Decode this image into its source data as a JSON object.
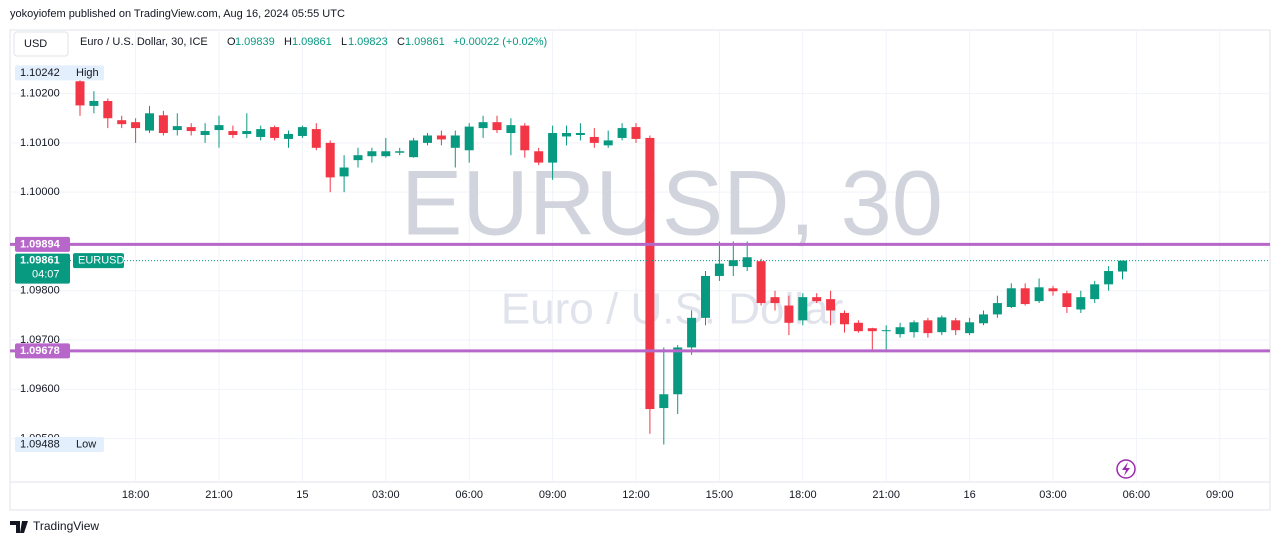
{
  "header": {
    "published": "yokoyiofem published on TradingView.com, Aug 16, 2024 05:55 UTC",
    "currency": "USD",
    "symbol": "Euro / U.S. Dollar, 30, ICE",
    "open_label": "O",
    "open": 1.09839,
    "high_label": "H",
    "high": 1.09861,
    "low_label": "L",
    "low": 1.09823,
    "close_label": "C",
    "close": 1.09861,
    "change": "+0.00022 (+0.02%)"
  },
  "chart_data": {
    "type": "candlestick",
    "watermark": "EURUSD, 30",
    "watermark_sub": "Euro / U.S. Dollar",
    "categories": [
      null,
      null,
      null,
      null,
      "18:00",
      null,
      null,
      null,
      null,
      null,
      "21:00",
      null,
      null,
      null,
      null,
      null,
      "15",
      null,
      null,
      null,
      null,
      null,
      "03:00",
      null,
      null,
      null,
      null,
      null,
      "06:00",
      null,
      null,
      null,
      null,
      null,
      "09:00",
      null,
      null,
      null,
      null,
      null,
      "12:00",
      null,
      null,
      null,
      null,
      null,
      "15:00",
      null,
      null,
      null,
      null,
      null,
      "18:00",
      null,
      null,
      null,
      null,
      null,
      "21:00",
      null,
      null,
      null,
      null,
      null,
      "16",
      null,
      null,
      null,
      null,
      null,
      "03:00",
      null,
      null,
      null,
      null,
      null,
      "06:00",
      null,
      null,
      null,
      null,
      null,
      "09:00",
      null,
      null,
      null
    ],
    "series": [
      {
        "name": "EURUSD",
        "up_color": "#089981",
        "down_color": "#f23645",
        "open": [
          1.10225,
          1.10175,
          1.10185,
          1.10146,
          1.10142,
          1.10125,
          1.10156,
          1.10126,
          1.10132,
          1.10116,
          1.10126,
          1.10124,
          1.10118,
          1.10112,
          1.10132,
          1.10108,
          1.10114,
          1.10128,
          1.101,
          1.10032,
          1.10065,
          1.10073,
          1.10073,
          1.1008,
          1.10071,
          1.101,
          1.10115,
          1.1009,
          1.10085,
          1.1013,
          1.10142,
          1.1012,
          1.10135,
          1.10083,
          1.1006,
          1.10113,
          1.10116,
          1.10112,
          1.10095,
          1.1011,
          1.10132,
          1.1011,
          1.09562,
          1.0959,
          1.09685,
          1.09745,
          1.0983,
          1.0985,
          1.09848,
          1.0986,
          1.09787,
          1.0977,
          1.0974,
          1.09787,
          1.09783,
          1.09755,
          1.09735,
          1.09724,
          1.09718,
          1.09712,
          1.09716,
          1.0974,
          1.09716,
          1.0974,
          1.09714,
          1.09734,
          1.09752,
          1.09767,
          1.09805,
          1.09779,
          1.09805,
          1.09795,
          1.09762,
          1.09783,
          1.09813,
          1.09839,
          null,
          null,
          null,
          null,
          null,
          null,
          null,
          null,
          null,
          null
        ],
        "high": [
          1.10242,
          1.10205,
          1.1019,
          1.10155,
          1.1015,
          1.10175,
          1.10165,
          1.1016,
          1.1014,
          1.1014,
          1.10155,
          1.10135,
          1.1016,
          1.10135,
          1.10135,
          1.10125,
          1.10135,
          1.1014,
          1.10105,
          1.10075,
          1.1009,
          1.1009,
          1.1011,
          1.1009,
          1.1011,
          1.1012,
          1.10125,
          1.10125,
          1.1014,
          1.10155,
          1.10155,
          1.1015,
          1.1014,
          1.1009,
          1.10135,
          1.10135,
          1.1014,
          1.1013,
          1.10125,
          1.1014,
          1.1014,
          1.10115,
          1.09685,
          1.0969,
          1.0976,
          1.0984,
          1.099,
          1.099,
          1.099,
          1.09865,
          1.098,
          1.0979,
          1.09795,
          1.09795,
          1.098,
          1.0976,
          1.0974,
          1.09725,
          1.0973,
          1.09735,
          1.0974,
          1.09745,
          1.0975,
          1.09745,
          1.09745,
          1.0976,
          1.0979,
          1.09815,
          1.09815,
          1.09825,
          1.0981,
          1.098,
          1.098,
          1.0982,
          1.0985,
          1.09861,
          null,
          null,
          null,
          null,
          null,
          null,
          null,
          null,
          null,
          null
        ],
        "low": [
          1.10155,
          1.1016,
          1.1013,
          1.1013,
          1.101,
          1.1012,
          1.10115,
          1.10115,
          1.10115,
          1.101,
          1.1009,
          1.1011,
          1.1011,
          1.10105,
          1.10105,
          1.1009,
          1.1011,
          1.10085,
          1.1,
          1.1,
          1.1005,
          1.1006,
          1.1007,
          1.10075,
          1.1007,
          1.10095,
          1.10095,
          1.1005,
          1.1006,
          1.1011,
          1.1012,
          1.10075,
          1.1007,
          1.10055,
          1.10025,
          1.10095,
          1.10105,
          1.1009,
          1.1009,
          1.10105,
          1.101,
          1.0951,
          1.09488,
          1.0955,
          1.0967,
          1.0973,
          1.0982,
          1.0983,
          1.0984,
          1.0977,
          1.0976,
          1.0971,
          1.0973,
          1.09775,
          1.0973,
          1.09715,
          1.09715,
          1.0968,
          1.0968,
          1.09705,
          1.09705,
          1.09705,
          1.0971,
          1.0971,
          1.0971,
          1.0973,
          1.09745,
          1.09765,
          1.0977,
          1.09775,
          1.0979,
          1.09755,
          1.09755,
          1.09775,
          1.098,
          1.09823,
          null,
          null,
          null,
          null,
          null,
          null,
          null,
          null,
          null,
          null
        ],
        "close": [
          1.10176,
          1.10185,
          1.1015,
          1.10138,
          1.1013,
          1.1016,
          1.1012,
          1.10134,
          1.10124,
          1.10124,
          1.10136,
          1.10116,
          1.10124,
          1.10128,
          1.1011,
          1.10118,
          1.10132,
          1.1009,
          1.1003,
          1.1005,
          1.10075,
          1.10083,
          1.10083,
          1.10083,
          1.10105,
          1.10115,
          1.10107,
          1.10115,
          1.10133,
          1.10142,
          1.10126,
          1.10136,
          1.10085,
          1.1006,
          1.1012,
          1.1012,
          1.1012,
          1.101,
          1.10105,
          1.1013,
          1.10108,
          1.0956,
          1.0959,
          1.09685,
          1.09745,
          1.0983,
          1.09855,
          1.09862,
          1.09868,
          1.09775,
          1.09775,
          1.09735,
          1.09787,
          1.09779,
          1.0976,
          1.09732,
          1.09718,
          1.09718,
          1.0972,
          1.09726,
          1.09736,
          1.09714,
          1.09746,
          1.0972,
          1.09736,
          1.09752,
          1.09775,
          1.09805,
          1.09773,
          1.09807,
          1.09799,
          1.09767,
          1.09787,
          1.09813,
          1.0984,
          1.09861,
          null,
          null,
          null,
          null,
          null,
          null,
          null,
          null,
          null,
          null
        ]
      }
    ],
    "ylim": [
      1.09412,
      1.10329
    ],
    "yticks": [
      {
        "value": 1.095,
        "label": "1.09500"
      },
      {
        "value": 1.096,
        "label": "1.09600"
      },
      {
        "value": 1.097,
        "label": "1.09700"
      },
      {
        "value": 1.098,
        "label": "1.09800"
      },
      {
        "value": 1.1,
        "label": "1.10000"
      },
      {
        "value": 1.101,
        "label": "1.10100"
      },
      {
        "value": 1.102,
        "label": "1.10200"
      }
    ],
    "grid": true,
    "hlines": [
      {
        "value": 1.09894,
        "color": "#b667c9"
      },
      {
        "value": 1.09678,
        "color": "#b667c9"
      }
    ],
    "last_price": {
      "value": 1.09861,
      "countdown": "04:07",
      "color": "#089981"
    },
    "high_marker": {
      "value": 1.10242,
      "label": "High"
    },
    "low_marker": {
      "value": 1.09488,
      "label": "Low"
    }
  },
  "footer": "TradingView"
}
